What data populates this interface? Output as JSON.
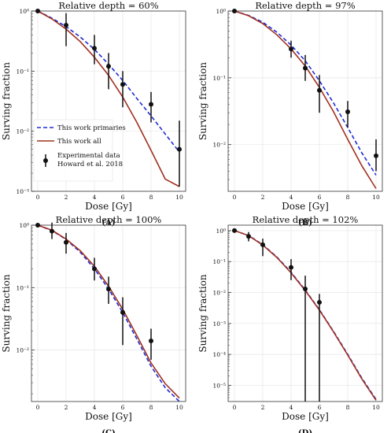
{
  "chart_data": [
    {
      "type": "line",
      "label": "(A)",
      "title": "Relative depth = 60%",
      "xlabel": "Dose [Gy]",
      "ylabel": "Surving fraction",
      "xlim": [
        0,
        10
      ],
      "ylim": [
        0.001,
        1
      ],
      "yscale": "log",
      "xticks": [
        "0",
        "2",
        "4",
        "6",
        "8",
        "10"
      ],
      "yticks": [
        "10⁻³",
        "10⁻²",
        "10⁻¹",
        "10⁰"
      ],
      "grid": true,
      "legend_position": "bottom-left",
      "series": [
        {
          "name": "This work primaries",
          "style": "dashed",
          "color": "#1f2bd6",
          "x": [
            0,
            1,
            2,
            3,
            4,
            5,
            6,
            7,
            8,
            9,
            10
          ],
          "y": [
            1.0,
            0.76,
            0.55,
            0.37,
            0.23,
            0.13,
            0.07,
            0.035,
            0.018,
            0.009,
            0.0045
          ]
        },
        {
          "name": "This work all",
          "style": "solid",
          "color": "#a0301f",
          "x": [
            0,
            1,
            2,
            3,
            4,
            5,
            6,
            7,
            8,
            9,
            10
          ],
          "y": [
            1.0,
            0.74,
            0.5,
            0.31,
            0.17,
            0.085,
            0.037,
            0.014,
            0.0048,
            0.0016,
            0.0012
          ]
        },
        {
          "name": "Experimental data Howard et al. 2018",
          "style": "points",
          "color": "#111111",
          "x": [
            0,
            2,
            4,
            5,
            6,
            8,
            10
          ],
          "y": [
            1.0,
            0.58,
            0.24,
            0.12,
            0.06,
            0.028,
            0.005
          ],
          "err_low": [
            1.0,
            0.26,
            0.13,
            0.05,
            0.025,
            0.014,
            0.0012
          ],
          "err_high": [
            1.0,
            0.92,
            0.4,
            0.2,
            0.1,
            0.045,
            0.015
          ]
        }
      ]
    },
    {
      "type": "line",
      "label": "(B)",
      "title": "Relative depth = 97%",
      "xlabel": "Dose [Gy]",
      "ylabel": "Surving fraction",
      "xlim": [
        0,
        10
      ],
      "ylim": [
        0.002,
        1
      ],
      "yscale": "log",
      "xticks": [
        "0",
        "2",
        "4",
        "6",
        "8",
        "10"
      ],
      "yticks": [
        "10⁻²",
        "10⁻¹",
        "10⁰"
      ],
      "grid": true,
      "series": [
        {
          "name": "This work primaries",
          "style": "dashed",
          "color": "#1f2bd6",
          "x": [
            0,
            1,
            2,
            3,
            4,
            5,
            6,
            7,
            8,
            9,
            10
          ],
          "y": [
            1.0,
            0.86,
            0.68,
            0.48,
            0.31,
            0.18,
            0.09,
            0.042,
            0.018,
            0.0075,
            0.0035
          ]
        },
        {
          "name": "This work all",
          "style": "solid",
          "color": "#a0301f",
          "x": [
            0,
            1,
            2,
            3,
            4,
            5,
            6,
            7,
            8,
            9,
            10
          ],
          "y": [
            1.0,
            0.85,
            0.65,
            0.44,
            0.27,
            0.15,
            0.072,
            0.031,
            0.012,
            0.0048,
            0.0022
          ]
        },
        {
          "name": "Experimental data Howard et al. 2018",
          "style": "points",
          "color": "#111111",
          "x": [
            0,
            4,
            5,
            6,
            8,
            10
          ],
          "y": [
            1.0,
            0.27,
            0.14,
            0.065,
            0.031,
            0.0068
          ],
          "err_low": [
            1.0,
            0.2,
            0.09,
            0.03,
            0.018,
            0.004
          ],
          "err_high": [
            1.0,
            0.36,
            0.22,
            0.11,
            0.045,
            0.012
          ]
        }
      ]
    },
    {
      "type": "line",
      "label": "(C)",
      "title": "Relative depth = 100%",
      "xlabel": "Dose [Gy]",
      "ylabel": "Surving fraction",
      "xlim": [
        0,
        10
      ],
      "ylim": [
        0.0015,
        1
      ],
      "yscale": "log",
      "xticks": [
        "0",
        "2",
        "4",
        "6",
        "8",
        "10"
      ],
      "yticks": [
        "10⁻²",
        "10⁻¹",
        "10⁰"
      ],
      "grid": true,
      "series": [
        {
          "name": "This work primaries",
          "style": "dashed",
          "color": "#1f2bd6",
          "x": [
            0,
            1,
            2,
            3,
            4,
            5,
            6,
            7,
            8,
            9,
            10
          ],
          "y": [
            1.0,
            0.82,
            0.59,
            0.37,
            0.2,
            0.095,
            0.04,
            0.015,
            0.0055,
            0.0025,
            0.0015
          ]
        },
        {
          "name": "This work all",
          "style": "solid",
          "color": "#a0301f",
          "x": [
            0,
            1,
            2,
            3,
            4,
            5,
            6,
            7,
            8,
            9,
            10
          ],
          "y": [
            1.0,
            0.83,
            0.6,
            0.39,
            0.22,
            0.105,
            0.045,
            0.017,
            0.0062,
            0.0029,
            0.0017
          ]
        },
        {
          "name": "Experimental data Howard et al. 2018",
          "style": "points",
          "color": "#111111",
          "x": [
            0,
            1,
            2,
            4,
            5,
            6,
            8
          ],
          "y": [
            1.0,
            0.8,
            0.53,
            0.2,
            0.095,
            0.04,
            0.014
          ],
          "err_low": [
            1.0,
            0.6,
            0.35,
            0.13,
            0.055,
            0.012,
            0.007
          ],
          "err_high": [
            1.0,
            1.1,
            0.75,
            0.3,
            0.15,
            0.07,
            0.022
          ]
        }
      ]
    },
    {
      "type": "line",
      "label": "(D)",
      "title": "Relative depth = 102%",
      "xlabel": "Dose [Gy]",
      "ylabel": "Surving fraction",
      "xlim": [
        0,
        10
      ],
      "ylim": [
        3e-06,
        1.5
      ],
      "yscale": "log",
      "xticks": [
        "0",
        "2",
        "4",
        "6",
        "8",
        "10"
      ],
      "yticks": [
        "10⁻⁵",
        "10⁻⁴",
        "10⁻³",
        "10⁻²",
        "10⁻¹",
        "10⁰"
      ],
      "grid": true,
      "series": [
        {
          "name": "This work primaries",
          "style": "dashed",
          "color": "#1f2bd6",
          "x": [
            0,
            1,
            2,
            3,
            4,
            5,
            6,
            7,
            8,
            9,
            10
          ],
          "y": [
            1.0,
            0.7,
            0.35,
            0.14,
            0.045,
            0.012,
            0.0028,
            0.00055,
            0.0001,
            1.7e-05,
            3.5e-06
          ]
        },
        {
          "name": "This work all",
          "style": "solid",
          "color": "#a0301f",
          "x": [
            0,
            1,
            2,
            3,
            4,
            5,
            6,
            7,
            8,
            9,
            10
          ],
          "y": [
            1.0,
            0.69,
            0.34,
            0.135,
            0.043,
            0.0115,
            0.0027,
            0.00053,
            9.5e-05,
            1.6e-05,
            3.3e-06
          ]
        },
        {
          "name": "Experimental data Howard et al. 2018",
          "style": "points",
          "color": "#111111",
          "x": [
            0,
            1,
            2,
            4,
            5,
            6
          ],
          "y": [
            1.0,
            0.65,
            0.35,
            0.065,
            0.013,
            0.0048
          ],
          "err_low": [
            1.0,
            0.45,
            0.15,
            0.025,
            3e-06,
            3e-06
          ],
          "err_high": [
            1.0,
            0.9,
            0.55,
            0.12,
            0.035,
            0.009
          ]
        }
      ]
    }
  ],
  "legend": {
    "items": [
      "This work primaries",
      "This work all",
      "Experimental data",
      "Howard et al. 2018"
    ]
  }
}
